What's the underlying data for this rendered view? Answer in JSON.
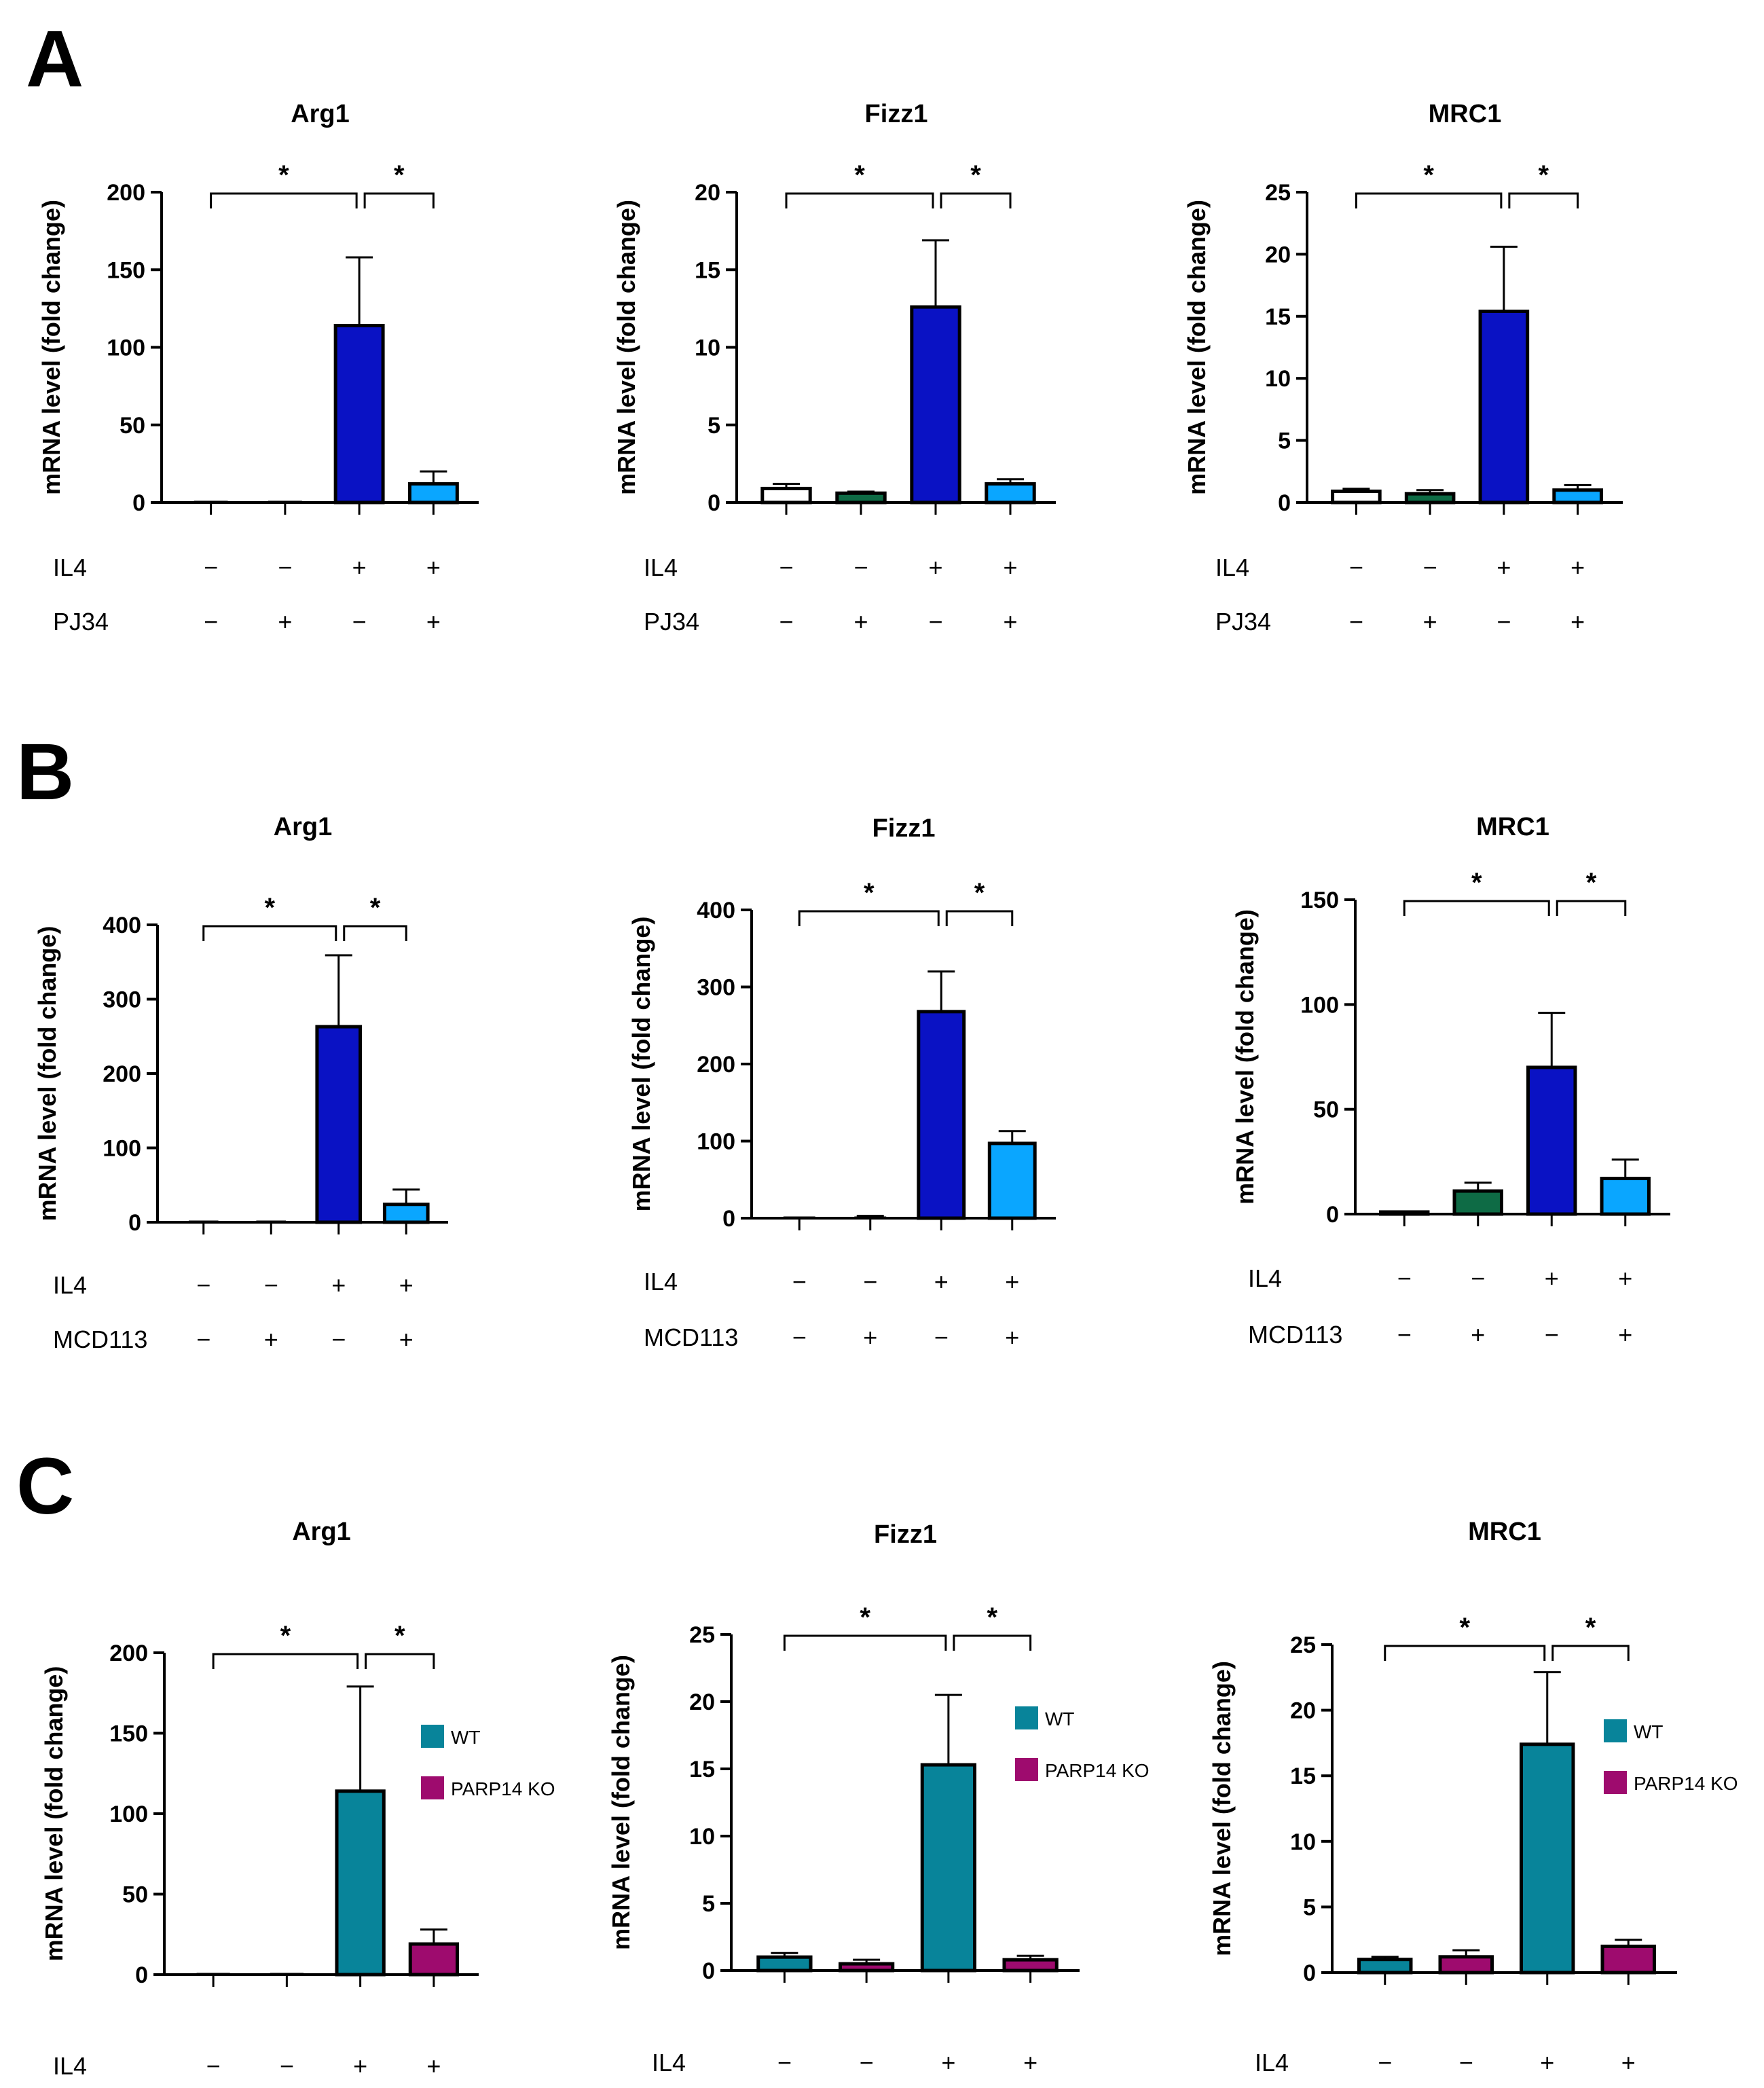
{
  "panel_letters": {
    "a": "A",
    "b": "B",
    "c": "C"
  },
  "colors": {
    "control": "#ffffff",
    "inhibitor_only": "#0e6b45",
    "il4": "#0a12c4",
    "il4_inhibitor": "#0aa6ff",
    "wt": "#08849a",
    "parp14_ko": "#9e0b6e"
  },
  "chart_data": [
    {
      "id": "A-Arg1",
      "panel": "A",
      "type": "bar",
      "title": "Arg1",
      "ylabel": "mRNA level (fold change)",
      "ylim": [
        0,
        200
      ],
      "yticks": [
        0,
        50,
        100,
        150,
        200
      ],
      "values": [
        1,
        1,
        114,
        12
      ],
      "errors": [
        0,
        0,
        44,
        8
      ],
      "bar_colors": [
        "control",
        "inhibitor_only",
        "il4",
        "il4_inhibitor"
      ],
      "significance": [
        {
          "from": 0,
          "to": 2,
          "label": "*"
        },
        {
          "from": 2,
          "to": 3,
          "label": "*"
        }
      ],
      "conditions": [
        {
          "name": "IL4",
          "signs": [
            "−",
            "−",
            "+",
            "+"
          ]
        },
        {
          "name": "PJ34",
          "signs": [
            "−",
            "+",
            "−",
            "+"
          ]
        }
      ]
    },
    {
      "id": "A-Fizz1",
      "panel": "A",
      "type": "bar",
      "title": "Fizz1",
      "ylabel": "mRNA level (fold change)",
      "ylim": [
        0,
        20
      ],
      "yticks": [
        0,
        5,
        10,
        15,
        20
      ],
      "values": [
        0.9,
        0.6,
        12.6,
        1.2
      ],
      "errors": [
        0.3,
        0.1,
        4.3,
        0.3
      ],
      "bar_colors": [
        "control",
        "inhibitor_only",
        "il4",
        "il4_inhibitor"
      ],
      "significance": [
        {
          "from": 0,
          "to": 2,
          "label": "*"
        },
        {
          "from": 2,
          "to": 3,
          "label": "*"
        }
      ],
      "conditions": [
        {
          "name": "IL4",
          "signs": [
            "−",
            "−",
            "+",
            "+"
          ]
        },
        {
          "name": "PJ34",
          "signs": [
            "−",
            "+",
            "−",
            "+"
          ]
        }
      ]
    },
    {
      "id": "A-MRC1",
      "panel": "A",
      "type": "bar",
      "title": "MRC1",
      "ylabel": "mRNA level (fold change)",
      "ylim": [
        0,
        25
      ],
      "yticks": [
        0,
        5,
        10,
        15,
        20,
        25
      ],
      "values": [
        0.9,
        0.7,
        15.4,
        1.0
      ],
      "errors": [
        0.2,
        0.3,
        5.2,
        0.4
      ],
      "bar_colors": [
        "control",
        "inhibitor_only",
        "il4",
        "il4_inhibitor"
      ],
      "significance": [
        {
          "from": 0,
          "to": 2,
          "label": "*"
        },
        {
          "from": 2,
          "to": 3,
          "label": "*"
        }
      ],
      "conditions": [
        {
          "name": "IL4",
          "signs": [
            "−",
            "−",
            "+",
            "+"
          ]
        },
        {
          "name": "PJ34",
          "signs": [
            "−",
            "+",
            "−",
            "+"
          ]
        }
      ]
    },
    {
      "id": "B-Arg1",
      "panel": "B",
      "type": "bar",
      "title": "Arg1",
      "ylabel": "mRNA level (fold change)",
      "ylim": [
        0,
        400
      ],
      "yticks": [
        0,
        100,
        200,
        300,
        400
      ],
      "values": [
        1,
        1,
        263,
        24
      ],
      "errors": [
        0,
        0,
        96,
        20
      ],
      "bar_colors": [
        "control",
        "inhibitor_only",
        "il4",
        "il4_inhibitor"
      ],
      "significance": [
        {
          "from": 0,
          "to": 2,
          "label": "*"
        },
        {
          "from": 2,
          "to": 3,
          "label": "*"
        }
      ],
      "conditions": [
        {
          "name": "IL4",
          "signs": [
            "−",
            "−",
            "+",
            "+"
          ]
        },
        {
          "name": "MCD113",
          "signs": [
            "−",
            "+",
            "−",
            "+"
          ]
        }
      ]
    },
    {
      "id": "B-Fizz1",
      "panel": "B",
      "type": "bar",
      "title": "Fizz1",
      "ylabel": "mRNA level (fold change)",
      "ylim": [
        0,
        400
      ],
      "yticks": [
        0,
        100,
        200,
        300,
        400
      ],
      "values": [
        1,
        2,
        268,
        97
      ],
      "errors": [
        0,
        1,
        52,
        16
      ],
      "bar_colors": [
        "control",
        "inhibitor_only",
        "il4",
        "il4_inhibitor"
      ],
      "significance": [
        {
          "from": 0,
          "to": 2,
          "label": "*"
        },
        {
          "from": 2,
          "to": 3,
          "label": "*"
        }
      ],
      "conditions": [
        {
          "name": "IL4",
          "signs": [
            "−",
            "−",
            "+",
            "+"
          ]
        },
        {
          "name": "MCD113",
          "signs": [
            "−",
            "+",
            "−",
            "+"
          ]
        }
      ]
    },
    {
      "id": "B-MRC1",
      "panel": "B",
      "type": "bar",
      "title": "MRC1",
      "ylabel": "mRNA level (fold change)",
      "ylim": [
        0,
        150
      ],
      "yticks": [
        0,
        50,
        100,
        150
      ],
      "values": [
        1,
        11,
        70,
        17
      ],
      "errors": [
        0,
        4,
        26,
        9
      ],
      "bar_colors": [
        "control",
        "inhibitor_only",
        "il4",
        "il4_inhibitor"
      ],
      "significance": [
        {
          "from": 0,
          "to": 2,
          "label": "*"
        },
        {
          "from": 2,
          "to": 3,
          "label": "*"
        }
      ],
      "conditions": [
        {
          "name": "IL4",
          "signs": [
            "−",
            "−",
            "+",
            "+"
          ]
        },
        {
          "name": "MCD113",
          "signs": [
            "−",
            "+",
            "−",
            "+"
          ]
        }
      ]
    },
    {
      "id": "C-Arg1",
      "panel": "C",
      "type": "bar",
      "title": "Arg1",
      "ylabel": "mRNA level (fold change)",
      "ylim": [
        0,
        200
      ],
      "yticks": [
        0,
        50,
        100,
        150,
        200
      ],
      "values": [
        1,
        1,
        114,
        19
      ],
      "errors": [
        0,
        0,
        65,
        9
      ],
      "bar_colors": [
        "wt",
        "parp14_ko",
        "wt",
        "parp14_ko"
      ],
      "significance": [
        {
          "from": 0,
          "to": 2,
          "label": "*"
        },
        {
          "from": 2,
          "to": 3,
          "label": "*"
        }
      ],
      "legend": [
        {
          "label": "WT",
          "color": "wt"
        },
        {
          "label": "PARP14 KO",
          "color": "parp14_ko"
        }
      ],
      "conditions": [
        {
          "name": "IL4",
          "signs": [
            "−",
            "−",
            "+",
            "+"
          ]
        }
      ]
    },
    {
      "id": "C-Fizz1",
      "panel": "C",
      "type": "bar",
      "title": "Fizz1",
      "ylabel": "mRNA level (fold change)",
      "ylim": [
        0,
        25
      ],
      "yticks": [
        0,
        5,
        10,
        15,
        20,
        25
      ],
      "values": [
        1.0,
        0.5,
        15.3,
        0.8
      ],
      "errors": [
        0.3,
        0.3,
        5.2,
        0.3
      ],
      "bar_colors": [
        "wt",
        "parp14_ko",
        "wt",
        "parp14_ko"
      ],
      "significance": [
        {
          "from": 0,
          "to": 2,
          "label": "*"
        },
        {
          "from": 2,
          "to": 3,
          "label": "*"
        }
      ],
      "legend": [
        {
          "label": "WT",
          "color": "wt"
        },
        {
          "label": "PARP14 KO",
          "color": "parp14_ko"
        }
      ],
      "conditions": [
        {
          "name": "IL4",
          "signs": [
            "−",
            "−",
            "+",
            "+"
          ]
        }
      ]
    },
    {
      "id": "C-MRC1",
      "panel": "C",
      "type": "bar",
      "title": "MRC1",
      "ylabel": "mRNA level (fold change)",
      "ylim": [
        0,
        25
      ],
      "yticks": [
        0,
        5,
        10,
        15,
        20,
        25
      ],
      "values": [
        1.0,
        1.2,
        17.4,
        2.0
      ],
      "errors": [
        0.2,
        0.5,
        5.5,
        0.5
      ],
      "bar_colors": [
        "wt",
        "parp14_ko",
        "wt",
        "parp14_ko"
      ],
      "significance": [
        {
          "from": 0,
          "to": 2,
          "label": "*"
        },
        {
          "from": 2,
          "to": 3,
          "label": "*"
        }
      ],
      "legend": [
        {
          "label": "WT",
          "color": "wt"
        },
        {
          "label": "PARP14 KO",
          "color": "parp14_ko"
        }
      ],
      "conditions": [
        {
          "name": "IL4",
          "signs": [
            "−",
            "−",
            "+",
            "+"
          ]
        }
      ]
    }
  ]
}
